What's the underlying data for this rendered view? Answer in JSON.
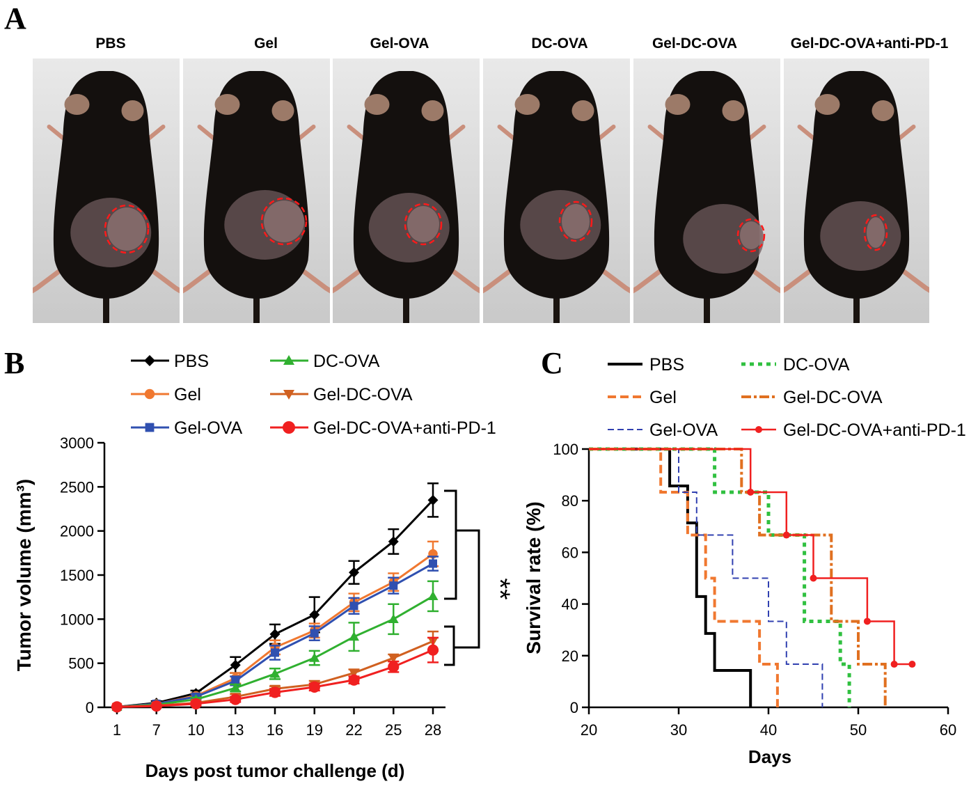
{
  "panel_a": {
    "letter": "A",
    "groups": [
      {
        "label": "PBS",
        "tumor": {
          "rx": 31,
          "ry": 34
        }
      },
      {
        "label": "Gel",
        "tumor": {
          "rx": 32,
          "ry": 33
        }
      },
      {
        "label": "Gel-OVA",
        "tumor": {
          "rx": 26,
          "ry": 29
        }
      },
      {
        "label": "DC-OVA",
        "tumor": {
          "rx": 23,
          "ry": 28
        }
      },
      {
        "label": "Gel-DC-OVA",
        "tumor": {
          "rx": 19,
          "ry": 23
        }
      },
      {
        "label": "Gel-DC-OVA+anti-PD-1",
        "tumor": {
          "rx": 16,
          "ry": 25
        }
      }
    ]
  },
  "panel_b": {
    "letter": "B",
    "significance": "**",
    "chart_data": {
      "type": "line",
      "xlabel": "Days post tumor challenge (d)",
      "ylabel": "Tumor volume (mm³)",
      "x": [
        1,
        7,
        10,
        13,
        16,
        19,
        22,
        25,
        28
      ],
      "ylim": [
        0,
        3000
      ],
      "yticks": [
        0,
        500,
        1000,
        1500,
        2000,
        2500,
        3000
      ],
      "series": [
        {
          "name": "PBS",
          "color": "#000000",
          "marker": "diamond",
          "values": [
            5,
            50,
            160,
            480,
            830,
            1050,
            1530,
            1880,
            2350
          ],
          "errors": [
            5,
            20,
            30,
            90,
            110,
            200,
            130,
            140,
            190
          ]
        },
        {
          "name": "Gel",
          "color": "#f07830",
          "marker": "circle",
          "values": [
            5,
            40,
            130,
            330,
            680,
            870,
            1190,
            1420,
            1740
          ],
          "errors": [
            5,
            15,
            30,
            60,
            80,
            80,
            100,
            100,
            140
          ]
        },
        {
          "name": "Gel-OVA",
          "color": "#3050b0",
          "marker": "square",
          "values": [
            5,
            40,
            120,
            300,
            620,
            840,
            1150,
            1380,
            1630
          ],
          "errors": [
            5,
            15,
            30,
            50,
            80,
            80,
            90,
            90,
            80
          ]
        },
        {
          "name": "DC-OVA",
          "color": "#30b030",
          "marker": "triangle-up",
          "values": [
            5,
            30,
            90,
            220,
            380,
            560,
            800,
            1000,
            1260
          ],
          "errors": [
            5,
            10,
            20,
            40,
            60,
            80,
            160,
            170,
            170
          ]
        },
        {
          "name": "Gel-DC-OVA",
          "color": "#d06020",
          "marker": "triangle-down",
          "values": [
            5,
            20,
            50,
            120,
            210,
            260,
            390,
            560,
            750
          ],
          "errors": [
            5,
            10,
            20,
            30,
            30,
            40,
            40,
            40,
            110
          ]
        },
        {
          "name": "Gel-DC-OVA+anti-PD-1",
          "color": "#f02020",
          "marker": "circle",
          "values": [
            5,
            15,
            40,
            90,
            170,
            230,
            310,
            460,
            650
          ],
          "errors": [
            5,
            10,
            20,
            30,
            40,
            40,
            40,
            60,
            140
          ]
        }
      ]
    }
  },
  "panel_c": {
    "letter": "C",
    "chart_data": {
      "type": "line",
      "xlabel": "Days",
      "ylabel": "Survival rate (%)",
      "xlim": [
        20,
        60
      ],
      "xticks": [
        20,
        30,
        40,
        50,
        60
      ],
      "ylim": [
        0,
        100
      ],
      "yticks": [
        0,
        20,
        40,
        60,
        80,
        100
      ],
      "series": [
        {
          "name": "PBS",
          "color": "#000000",
          "dash": "solid",
          "width": 4,
          "steps": [
            [
              20,
              100
            ],
            [
              29,
              100
            ],
            [
              29,
              85.7
            ],
            [
              31,
              85.7
            ],
            [
              31,
              71.4
            ],
            [
              32,
              71.4
            ],
            [
              32,
              42.9
            ],
            [
              33,
              42.9
            ],
            [
              33,
              28.6
            ],
            [
              34,
              28.6
            ],
            [
              34,
              14.3
            ],
            [
              38,
              14.3
            ],
            [
              38,
              0
            ]
          ],
          "censor": []
        },
        {
          "name": "Gel",
          "color": "#f07830",
          "dash": "dash",
          "width": 4,
          "steps": [
            [
              20,
              100
            ],
            [
              28,
              100
            ],
            [
              28,
              83.3
            ],
            [
              31,
              83.3
            ],
            [
              31,
              66.7
            ],
            [
              33,
              66.7
            ],
            [
              33,
              50
            ],
            [
              34,
              50
            ],
            [
              34,
              33.3
            ],
            [
              39,
              33.3
            ],
            [
              39,
              16.7
            ],
            [
              41,
              16.7
            ],
            [
              41,
              0
            ]
          ],
          "censor": []
        },
        {
          "name": "Gel-OVA",
          "color": "#3040b0",
          "dash": "fine",
          "width": 2,
          "steps": [
            [
              20,
              100
            ],
            [
              30,
              100
            ],
            [
              30,
              83.3
            ],
            [
              32,
              83.3
            ],
            [
              32,
              66.7
            ],
            [
              36,
              66.7
            ],
            [
              36,
              50
            ],
            [
              40,
              50
            ],
            [
              40,
              33.3
            ],
            [
              42,
              33.3
            ],
            [
              42,
              16.7
            ],
            [
              46,
              16.7
            ],
            [
              46,
              0
            ]
          ],
          "censor": []
        },
        {
          "name": "DC-OVA",
          "color": "#30c040",
          "dash": "dot",
          "width": 5,
          "steps": [
            [
              20,
              100
            ],
            [
              34,
              100
            ],
            [
              34,
              83.3
            ],
            [
              40,
              83.3
            ],
            [
              40,
              66.7
            ],
            [
              44,
              66.7
            ],
            [
              44,
              33.3
            ],
            [
              48,
              33.3
            ],
            [
              48,
              16.7
            ],
            [
              49,
              16.7
            ],
            [
              49,
              0
            ]
          ],
          "censor": []
        },
        {
          "name": "Gel-DC-OVA",
          "color": "#e07020",
          "dash": "dashdot",
          "width": 4,
          "steps": [
            [
              20,
              100
            ],
            [
              37,
              100
            ],
            [
              37,
              83.3
            ],
            [
              39,
              83.3
            ],
            [
              39,
              66.7
            ],
            [
              47,
              66.7
            ],
            [
              47,
              33.3
            ],
            [
              50,
              33.3
            ],
            [
              50,
              16.7
            ],
            [
              53,
              16.7
            ],
            [
              53,
              0
            ]
          ],
          "censor": []
        },
        {
          "name": "Gel-DC-OVA+anti-PD-1",
          "color": "#f02020",
          "dash": "solid",
          "width": 2.5,
          "steps": [
            [
              20,
              100
            ],
            [
              38,
              100
            ],
            [
              38,
              83.3
            ],
            [
              42,
              83.3
            ],
            [
              42,
              66.7
            ],
            [
              45,
              66.7
            ],
            [
              45,
              50
            ],
            [
              51,
              50
            ],
            [
              51,
              33.3
            ],
            [
              54,
              33.3
            ],
            [
              54,
              16.7
            ],
            [
              56,
              16.7
            ]
          ],
          "censor": [
            [
              38,
              83.3
            ],
            [
              42,
              66.7
            ],
            [
              45,
              50
            ],
            [
              51,
              33.3
            ],
            [
              54,
              16.7
            ],
            [
              56,
              16.7
            ]
          ]
        }
      ]
    }
  }
}
